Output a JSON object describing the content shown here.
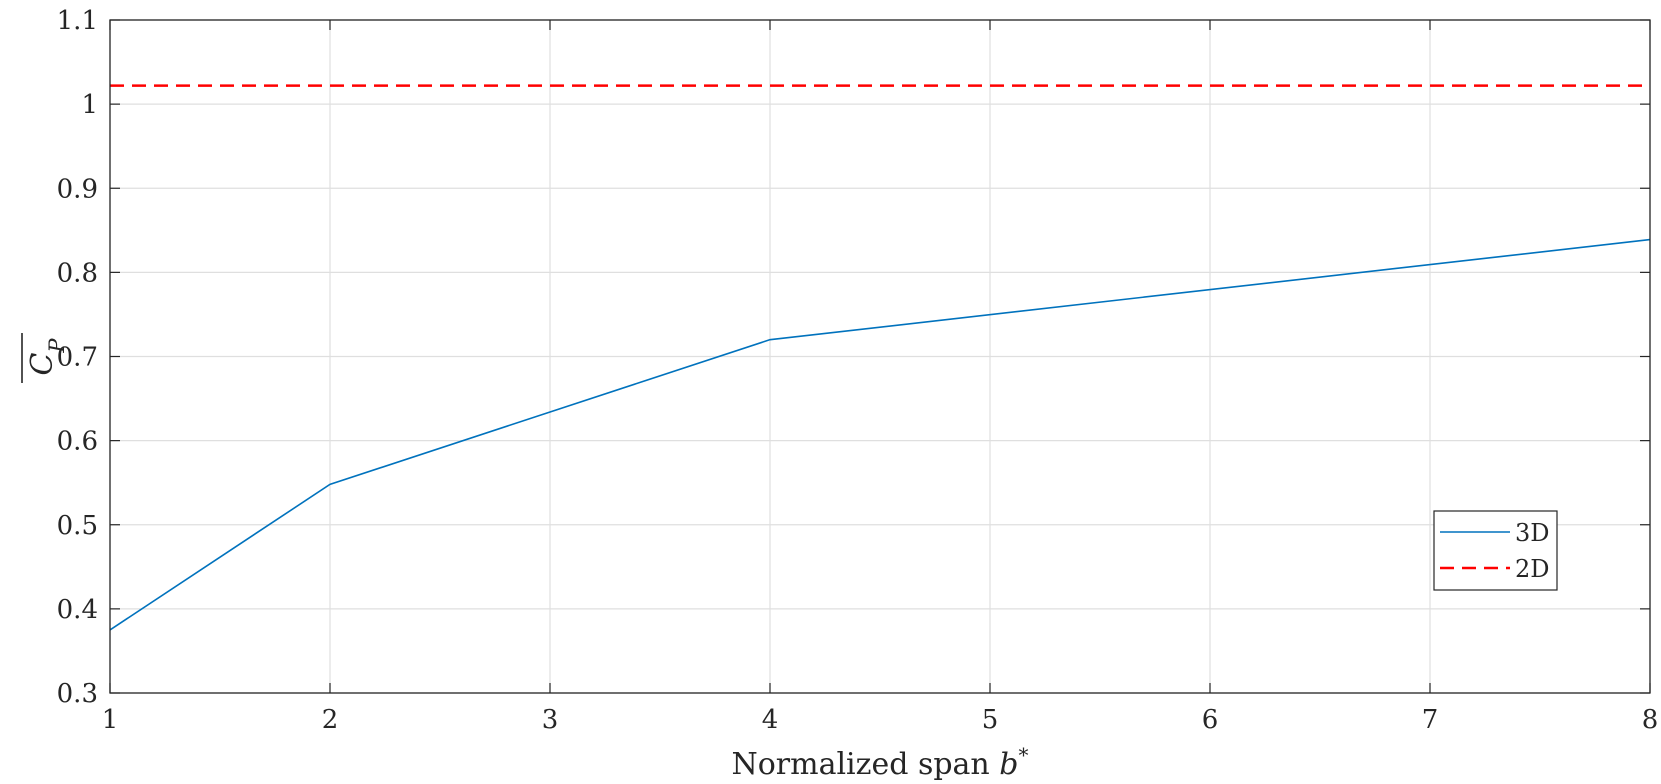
{
  "chart_data": {
    "type": "line",
    "xlabel": "Normalized span b*",
    "ylabel": "C_P (overline)",
    "xlim": [
      1,
      8
    ],
    "ylim": [
      0.3,
      1.1
    ],
    "x_ticks": [
      "1",
      "2",
      "3",
      "4",
      "5",
      "6",
      "7",
      "8"
    ],
    "y_ticks": [
      "0.3",
      "0.4",
      "0.5",
      "0.6",
      "0.7",
      "0.8",
      "0.9",
      "1",
      "1.1"
    ],
    "grid": true,
    "legend_position": "lower-right",
    "series": [
      {
        "name": "3D",
        "style": "solid",
        "color": "#0072BD",
        "x": [
          1,
          2,
          4,
          8
        ],
        "y": [
          0.375,
          0.548,
          0.72,
          0.839
        ]
      },
      {
        "name": "2D",
        "style": "dashed",
        "color": "#FF0000",
        "x": [
          1,
          8
        ],
        "y": [
          1.022,
          1.022
        ]
      }
    ]
  }
}
